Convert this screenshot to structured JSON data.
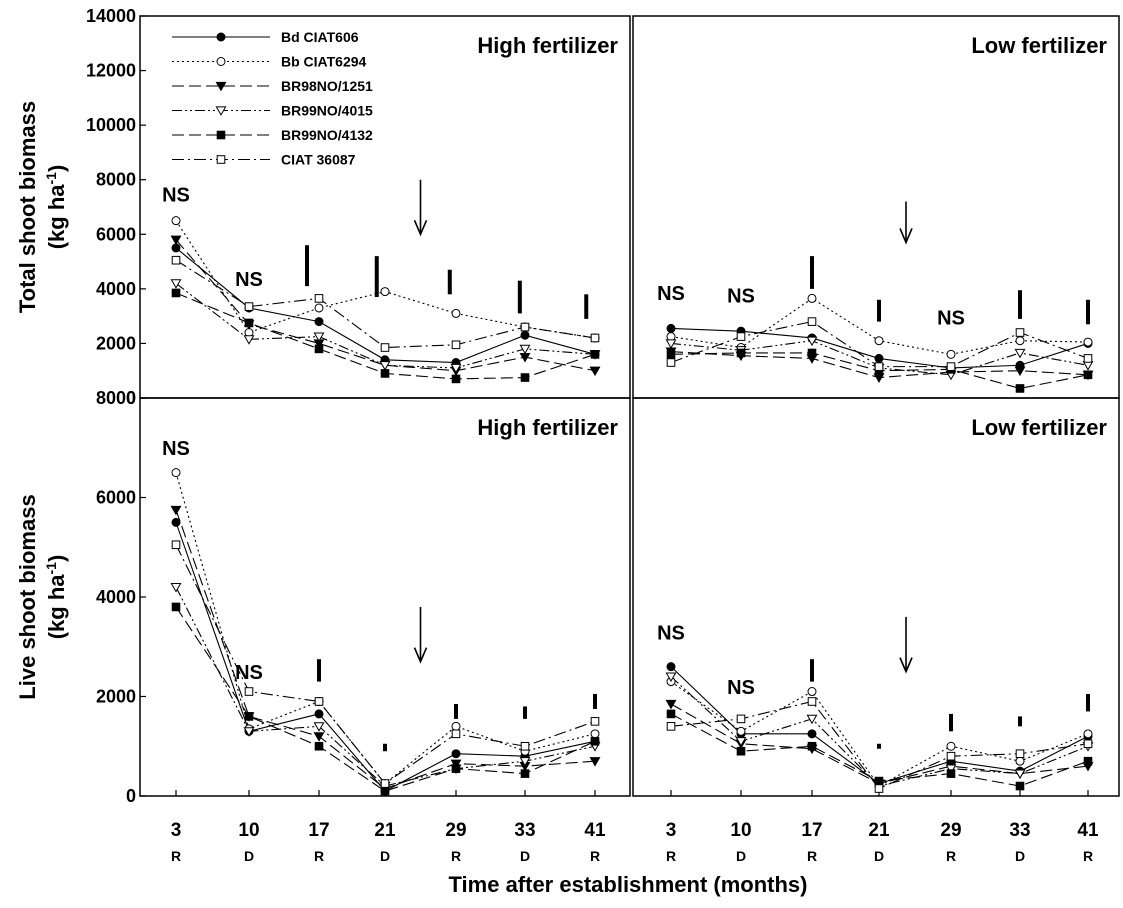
{
  "chart_data": {
    "type": "line",
    "xlabel": "Time after establishment (months)",
    "x_categories": [
      "3",
      "10",
      "17",
      "21",
      "29",
      "33",
      "41"
    ],
    "x_season": [
      "R",
      "D",
      "R",
      "D",
      "R",
      "D",
      "R"
    ],
    "series_names": [
      "Bd CIAT606",
      "Bb CIAT6294",
      "BR98NO/1251",
      "BR99NO/4015",
      "BR99NO/4132",
      "CIAT 36087"
    ],
    "series_markers": [
      "filled-circle",
      "open-circle",
      "filled-triangle-down",
      "open-triangle-down",
      "filled-square",
      "open-square"
    ],
    "series_dash": [
      "solid",
      "dotted",
      "long-dash",
      "dash-dot-dot",
      "long-dash",
      "dash-dot"
    ],
    "significance_label": "NS",
    "panels": [
      {
        "title": "High fertilizer",
        "ylabel": "Total shoot biomass",
        "ylabel_unit": "(kg ha",
        "ylabel_sup": "-1",
        "ylabel_close": ")",
        "ylim": [
          0,
          14000
        ],
        "yticks": [
          0,
          2000,
          4000,
          6000,
          8000,
          10000,
          12000,
          14000
        ],
        "series": [
          {
            "name": "Bd CIAT606",
            "values": [
              5500,
              3300,
              2800,
              1400,
              1300,
              2300,
              1600
            ]
          },
          {
            "name": "Bb CIAT6294",
            "values": [
              6500,
              2400,
              3300,
              3900,
              3100,
              2600,
              2200
            ]
          },
          {
            "name": "BR98NO/1251",
            "values": [
              5800,
              2700,
              2000,
              1200,
              1000,
              1500,
              1000
            ]
          },
          {
            "name": "BR99NO/4015",
            "values": [
              4200,
              2150,
              2250,
              1200,
              1100,
              1800,
              1600
            ]
          },
          {
            "name": "BR99NO/4132",
            "values": [
              3850,
              2750,
              1800,
              900,
              700,
              750,
              1600
            ]
          },
          {
            "name": "CIAT 36087",
            "values": [
              5050,
              3350,
              3650,
              1850,
              1950,
              2600,
              2200
            ]
          }
        ],
        "ns_markers": [
          {
            "x": "3",
            "y": 7200
          },
          {
            "x": "10",
            "y": 4100
          }
        ],
        "lsd_bars": [
          {
            "x": 15.8,
            "low": 4100,
            "high": 5600
          },
          {
            "x": 20.5,
            "low": 3700,
            "high": 5200
          },
          {
            "x": 28.3,
            "low": 3800,
            "high": 4700
          },
          {
            "x": 32.7,
            "low": 3100,
            "high": 4300
          },
          {
            "x": 40,
            "low": 2900,
            "high": 3800
          }
        ],
        "arrow": {
          "x": 25,
          "top": 8000,
          "bottom": 6000
        }
      },
      {
        "title": "Low fertilizer",
        "ylabel": "",
        "ylim": [
          0,
          14000
        ],
        "yticks": [],
        "series": [
          {
            "name": "Bd CIAT606",
            "values": [
              2550,
              2450,
              2200,
              1450,
              1100,
              1200,
              2000
            ]
          },
          {
            "name": "Bb CIAT6294",
            "values": [
              2250,
              1850,
              3650,
              2100,
              1600,
              2100,
              2050
            ]
          },
          {
            "name": "BR98NO/1251",
            "values": [
              1700,
              1550,
              1450,
              750,
              950,
              1000,
              850
            ]
          },
          {
            "name": "BR99NO/4015",
            "values": [
              2000,
              1750,
              2100,
              1100,
              850,
              1650,
              1200
            ]
          },
          {
            "name": "BR99NO/4132",
            "values": [
              1600,
              1650,
              1650,
              1000,
              1050,
              350,
              850
            ]
          },
          {
            "name": "CIAT 36087",
            "values": [
              1300,
              2250,
              2800,
              1150,
              1150,
              2400,
              1450
            ]
          }
        ],
        "ns_markers": [
          {
            "x": "3",
            "y": 3600
          },
          {
            "x": "10",
            "y": 3500
          },
          {
            "x": "29",
            "y": 2700
          }
        ],
        "lsd_bars": [
          {
            "x": 17,
            "low": 4000,
            "high": 5200
          },
          {
            "x": 21,
            "low": 2800,
            "high": 3600
          },
          {
            "x": 33,
            "low": 2900,
            "high": 3950
          },
          {
            "x": 41,
            "low": 2700,
            "high": 3600
          }
        ],
        "arrow": {
          "x": 24,
          "top": 7200,
          "bottom": 5700
        }
      },
      {
        "title": "High fertilizer",
        "ylabel": "Live shoot biomass",
        "ylabel_unit": "(kg ha",
        "ylabel_sup": "-1",
        "ylabel_close": ")",
        "ylim": [
          0,
          8000
        ],
        "yticks": [
          0,
          2000,
          4000,
          6000,
          8000
        ],
        "series": [
          {
            "name": "Bd CIAT606",
            "values": [
              5500,
              1300,
              1650,
              100,
              850,
              800,
              1100
            ]
          },
          {
            "name": "Bb CIAT6294",
            "values": [
              6500,
              1350,
              1900,
              250,
              1400,
              900,
              1250
            ]
          },
          {
            "name": "BR98NO/1251",
            "values": [
              5750,
              1600,
              1200,
              150,
              650,
              600,
              700
            ]
          },
          {
            "name": "BR99NO/4015",
            "values": [
              4200,
              1300,
              1400,
              200,
              550,
              700,
              1000
            ]
          },
          {
            "name": "BR99NO/4132",
            "values": [
              3800,
              1600,
              1000,
              100,
              550,
              450,
              1100
            ]
          },
          {
            "name": "CIAT 36087",
            "values": [
              5050,
              2100,
              1900,
              250,
              1250,
              1000,
              1500
            ]
          }
        ],
        "ns_markers": [
          {
            "x": "3",
            "y": 6850
          },
          {
            "x": "10",
            "y": 2350
          }
        ],
        "lsd_bars": [
          {
            "x": 17,
            "low": 2300,
            "high": 2750
          },
          {
            "x": 21,
            "low": 900,
            "high": 1050
          },
          {
            "x": 29,
            "low": 1550,
            "high": 1850
          },
          {
            "x": 33,
            "low": 1550,
            "high": 1800
          },
          {
            "x": 41,
            "low": 1750,
            "high": 2050
          }
        ],
        "arrow": {
          "x": 25,
          "top": 3800,
          "bottom": 2700
        }
      },
      {
        "title": "Low fertilizer",
        "ylabel": "",
        "ylim": [
          0,
          8000
        ],
        "yticks": [],
        "series": [
          {
            "name": "Bd CIAT606",
            "values": [
              2600,
              1250,
              1250,
              250,
              700,
              500,
              1200
            ]
          },
          {
            "name": "Bb CIAT6294",
            "values": [
              2300,
              1300,
              2100,
              200,
              1000,
              700,
              1250
            ]
          },
          {
            "name": "BR98NO/1251",
            "values": [
              1850,
              1050,
              950,
              250,
              600,
              450,
              600
            ]
          },
          {
            "name": "BR99NO/4015",
            "values": [
              2400,
              1100,
              1550,
              200,
              550,
              450,
              1000
            ]
          },
          {
            "name": "BR99NO/4132",
            "values": [
              1650,
              900,
              1000,
              300,
              450,
              200,
              700
            ]
          },
          {
            "name": "CIAT 36087",
            "values": [
              1400,
              1550,
              1900,
              150,
              800,
              850,
              1050
            ]
          }
        ],
        "ns_markers": [
          {
            "x": "3",
            "y": 3150
          },
          {
            "x": "10",
            "y": 2050
          }
        ],
        "lsd_bars": [
          {
            "x": 17,
            "low": 2300,
            "high": 2750
          },
          {
            "x": 21,
            "low": 950,
            "high": 1050
          },
          {
            "x": 29,
            "low": 1300,
            "high": 1650
          },
          {
            "x": 33,
            "low": 1400,
            "high": 1600
          },
          {
            "x": 41,
            "low": 1700,
            "high": 2050
          }
        ],
        "arrow": {
          "x": 24,
          "top": 3600,
          "bottom": 2500
        }
      }
    ]
  }
}
